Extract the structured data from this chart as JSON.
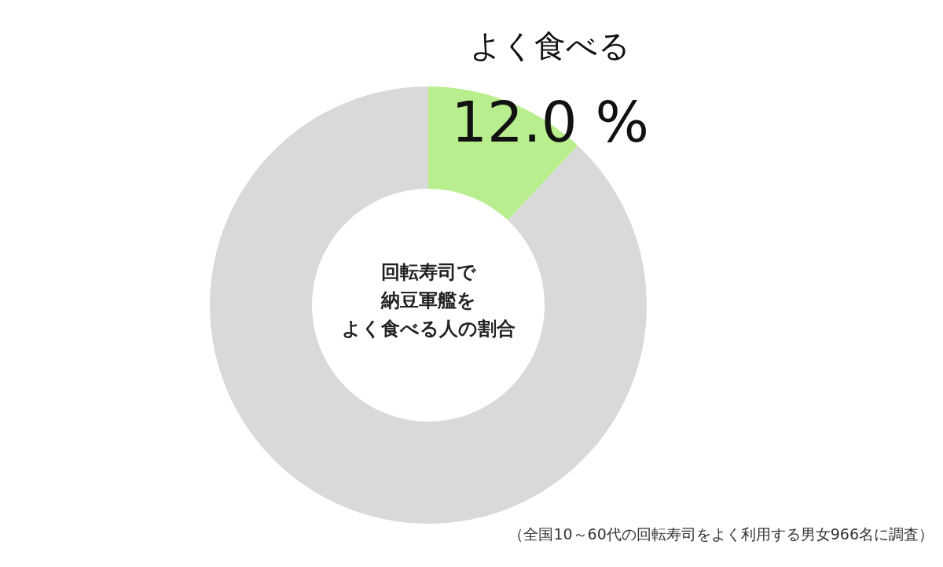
{
  "chart_data": {
    "type": "donut",
    "title": "回転寿司で納豆軍艦を",
    "subtitle": "よく食べる人の割合",
    "categories": [
      "よく食べる",
      null
    ],
    "values": [
      12.0,
      88.0
    ],
    "colors": [
      "#b9ee8f",
      "#d9d9d9"
    ],
    "value_labels": [
      "12.0 %",
      null
    ],
    "annotations": [
      "（全国10～60代の回転寿司をよく利用する男女966名に調査）"
    ]
  }
}
